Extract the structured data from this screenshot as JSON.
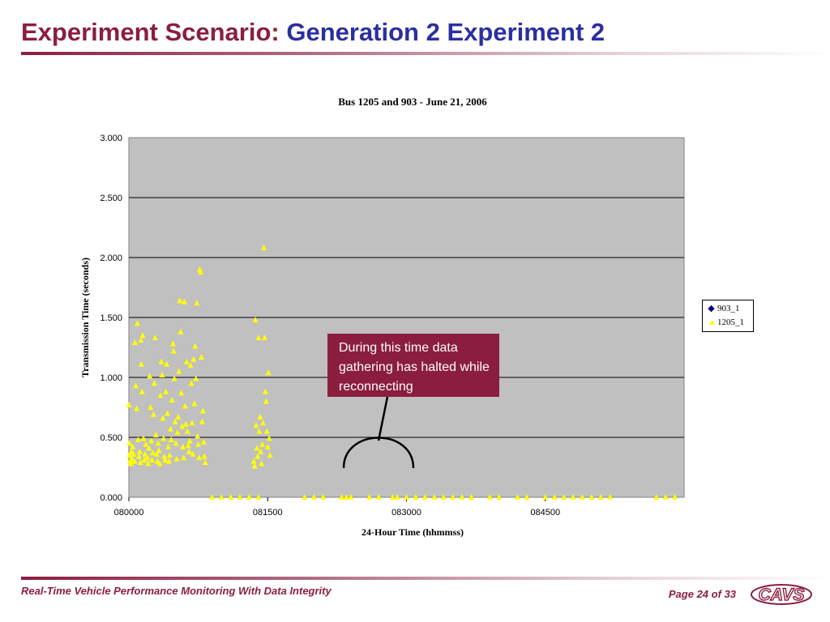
{
  "slide": {
    "title_prefix": "Experiment Scenario:",
    "title_suffix": "Generation 2 Experiment 2",
    "footer": "Real-Time Vehicle Performance Monitoring With Data Integrity",
    "page": "Page 24 of 33",
    "logo_text": "CAVS"
  },
  "callout": {
    "text": "During this time data gathering has halted while reconnecting"
  },
  "colors": {
    "brand": "#8b1e3f",
    "title_accent": "#2b2fa0",
    "plot_bg": "#c0c0c0",
    "series_1205": "#ffff00",
    "series_903": "#000080"
  },
  "chart_data": {
    "type": "scatter",
    "title": "Bus 1205 and 903 - June 21, 2006",
    "xlabel": "24-Hour Time (hhmmss)",
    "ylabel": "Transmission Time (seconds)",
    "ylim": [
      0,
      3
    ],
    "y_ticks": [
      "0.000",
      "0.500",
      "1.000",
      "1.500",
      "2.000",
      "2.500",
      "3.000"
    ],
    "x_range_seconds_of_day": [
      28800,
      32400
    ],
    "x_ticks": [
      "080000",
      "081500",
      "083000",
      "084500"
    ],
    "grid": "horizontal",
    "legend_position": "right",
    "series": [
      {
        "name": "903_1",
        "marker": "diamond",
        "points": []
      },
      {
        "name": "1205_1",
        "marker": "triangle",
        "points": [
          [
            "080000",
            0.77
          ],
          [
            "080003",
            0.45
          ],
          [
            "080005",
            0.35
          ],
          [
            "080008",
            0.3
          ],
          [
            "080012",
            0.28
          ],
          [
            "080015",
            0.38
          ],
          [
            "080020",
            0.32
          ],
          [
            "080025",
            0.42
          ],
          [
            "080030",
            0.36
          ],
          [
            "080036",
            0.3
          ],
          [
            "080040",
            1.29
          ],
          [
            "080045",
            0.93
          ],
          [
            "080050",
            0.74
          ],
          [
            "080055",
            1.45
          ],
          [
            "080100",
            0.48
          ],
          [
            "080105",
            0.34
          ],
          [
            "080110",
            0.38
          ],
          [
            "080115",
            0.29
          ],
          [
            "080118",
            1.31
          ],
          [
            "080120",
            1.11
          ],
          [
            "080125",
            0.88
          ],
          [
            "080130",
            1.35
          ],
          [
            "080135",
            0.49
          ],
          [
            "080140",
            0.31
          ],
          [
            "080145",
            0.36
          ],
          [
            "080150",
            0.44
          ],
          [
            "080200",
            0.33
          ],
          [
            "080205",
            0.28
          ],
          [
            "080210",
            0.41
          ],
          [
            "080215",
            1.01
          ],
          [
            "080220",
            0.75
          ],
          [
            "080225",
            0.47
          ],
          [
            "080230",
            0.31
          ],
          [
            "080235",
            0.37
          ],
          [
            "080240",
            0.69
          ],
          [
            "080245",
            0.95
          ],
          [
            "080250",
            1.33
          ],
          [
            "080255",
            0.52
          ],
          [
            "080300",
            0.36
          ],
          [
            "080305",
            0.3
          ],
          [
            "080310",
            0.45
          ],
          [
            "080315",
            0.39
          ],
          [
            "080320",
            0.28
          ],
          [
            "080325",
            0.85
          ],
          [
            "080330",
            1.13
          ],
          [
            "080335",
            1.02
          ],
          [
            "080340",
            0.66
          ],
          [
            "080345",
            0.49
          ],
          [
            "080350",
            0.34
          ],
          [
            "080355",
            0.31
          ],
          [
            "080400",
            0.88
          ],
          [
            "080405",
            1.11
          ],
          [
            "080410",
            0.7
          ],
          [
            "080415",
            0.42
          ],
          [
            "080420",
            0.3
          ],
          [
            "080425",
            0.35
          ],
          [
            "080430",
            0.57
          ],
          [
            "080435",
            0.48
          ],
          [
            "080440",
            0.81
          ],
          [
            "080445",
            1.28
          ],
          [
            "080450",
            1.22
          ],
          [
            "080455",
            0.99
          ],
          [
            "080500",
            0.63
          ],
          [
            "080505",
            0.45
          ],
          [
            "080510",
            0.32
          ],
          [
            "080515",
            0.54
          ],
          [
            "080520",
            0.67
          ],
          [
            "080525",
            1.05
          ],
          [
            "080530",
            1.64
          ],
          [
            "080535",
            1.38
          ],
          [
            "080540",
            0.87
          ],
          [
            "080545",
            0.59
          ],
          [
            "080550",
            0.42
          ],
          [
            "080555",
            0.33
          ],
          [
            "080600",
            1.63
          ],
          [
            "080605",
            0.76
          ],
          [
            "080610",
            0.61
          ],
          [
            "080615",
            1.13
          ],
          [
            "080620",
            0.55
          ],
          [
            "080625",
            0.43
          ],
          [
            "080630",
            0.38
          ],
          [
            "080635",
            0.47
          ],
          [
            "080640",
            1.1
          ],
          [
            "080645",
            0.95
          ],
          [
            "080650",
            0.62
          ],
          [
            "080655",
            0.36
          ],
          [
            "080700",
            1.15
          ],
          [
            "080705",
            0.78
          ],
          [
            "080710",
            1.26
          ],
          [
            "080715",
            0.99
          ],
          [
            "080720",
            1.62
          ],
          [
            "080725",
            0.51
          ],
          [
            "080730",
            0.44
          ],
          [
            "080735",
            0.33
          ],
          [
            "080740",
            1.9
          ],
          [
            "080745",
            1.88
          ],
          [
            "080750",
            1.17
          ],
          [
            "080755",
            0.63
          ],
          [
            "080800",
            0.72
          ],
          [
            "080805",
            0.46
          ],
          [
            "080810",
            0.34
          ],
          [
            "080815",
            0.29
          ],
          [
            "081330",
            0.3
          ],
          [
            "081335",
            0.26
          ],
          [
            "081340",
            1.48
          ],
          [
            "081345",
            0.6
          ],
          [
            "081350",
            0.41
          ],
          [
            "081355",
            0.34
          ],
          [
            "081400",
            1.33
          ],
          [
            "081405",
            0.55
          ],
          [
            "081410",
            0.67
          ],
          [
            "081415",
            0.38
          ],
          [
            "081420",
            0.28
          ],
          [
            "081425",
            0.44
          ],
          [
            "081430",
            0.62
          ],
          [
            "081435",
            2.08
          ],
          [
            "081440",
            1.33
          ],
          [
            "081445",
            0.88
          ],
          [
            "081450",
            0.8
          ],
          [
            "081455",
            0.55
          ],
          [
            "081500",
            0.42
          ],
          [
            "081505",
            1.04
          ],
          [
            "081510",
            0.49
          ],
          [
            "081515",
            0.35
          ],
          [
            "080900",
            0.0
          ],
          [
            "081000",
            0.0
          ],
          [
            "081100",
            0.0
          ],
          [
            "081200",
            0.0
          ],
          [
            "081300",
            0.0
          ],
          [
            "081400",
            0.0
          ],
          [
            "081900",
            0.0
          ],
          [
            "082000",
            0.0
          ],
          [
            "082100",
            0.0
          ],
          [
            "082300",
            0.0
          ],
          [
            "082330",
            0.0
          ],
          [
            "082400",
            0.0
          ],
          [
            "082600",
            0.0
          ],
          [
            "082700",
            0.0
          ],
          [
            "082830",
            0.0
          ],
          [
            "082900",
            0.0
          ],
          [
            "083000",
            0.0
          ],
          [
            "083100",
            0.0
          ],
          [
            "083200",
            0.0
          ],
          [
            "083300",
            0.0
          ],
          [
            "083400",
            0.0
          ],
          [
            "083500",
            0.0
          ],
          [
            "083600",
            0.0
          ],
          [
            "083700",
            0.0
          ],
          [
            "083900",
            0.0
          ],
          [
            "084000",
            0.0
          ],
          [
            "084200",
            0.0
          ],
          [
            "084300",
            0.0
          ],
          [
            "084500",
            0.0
          ],
          [
            "084600",
            0.0
          ],
          [
            "084700",
            0.0
          ],
          [
            "084800",
            0.0
          ],
          [
            "084900",
            0.0
          ],
          [
            "085000",
            0.0
          ],
          [
            "085100",
            0.0
          ],
          [
            "085200",
            0.0
          ],
          [
            "085700",
            0.0
          ],
          [
            "085800",
            0.0
          ],
          [
            "085900",
            0.0
          ]
        ]
      }
    ]
  }
}
